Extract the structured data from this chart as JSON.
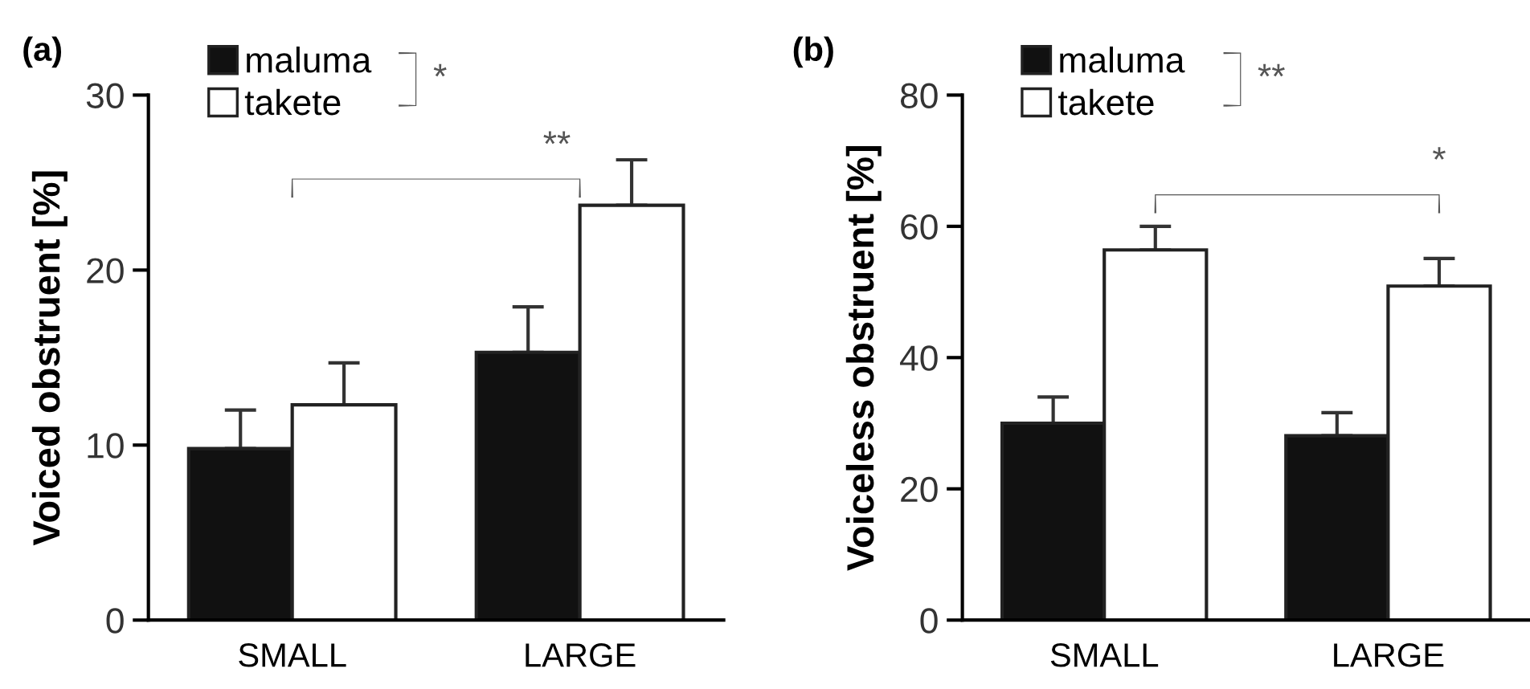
{
  "chart_data": [
    {
      "type": "bar",
      "title": "(a)",
      "ylabel": "Voiced obstruent [%]",
      "categories": [
        "SMALL",
        "LARGE"
      ],
      "series": [
        {
          "name": "maluma",
          "color": "#111111",
          "values": [
            9.8,
            15.3
          ],
          "errors": [
            [
              9.8,
              12.0
            ],
            [
              15.3,
              17.9
            ]
          ]
        },
        {
          "name": "takete",
          "color": "#ffffff",
          "values": [
            12.3,
            23.7
          ],
          "errors": [
            [
              12.3,
              14.7
            ],
            [
              23.7,
              26.3
            ]
          ]
        }
      ],
      "ylim": [
        0,
        30
      ],
      "yticks": [
        0,
        10,
        20,
        30
      ],
      "legend": "top left",
      "grid": false,
      "annotations": [
        "*",
        "**"
      ]
    },
    {
      "type": "bar",
      "title": "(b)",
      "ylabel": "Voiceless obstruent [%]",
      "categories": [
        "SMALL",
        "LARGE"
      ],
      "series": [
        {
          "name": "maluma",
          "color": "#111111",
          "values": [
            30.0,
            28.1
          ],
          "errors": [
            [
              30.0,
              34.0
            ],
            [
              28.1,
              31.6
            ]
          ]
        },
        {
          "name": "takete",
          "color": "#ffffff",
          "values": [
            56.4,
            50.9
          ],
          "errors": [
            [
              56.4,
              60.0
            ],
            [
              50.9,
              55.1
            ]
          ]
        }
      ],
      "ylim": [
        0,
        80
      ],
      "yticks": [
        0,
        20,
        40,
        60,
        80
      ],
      "legend": "top left",
      "grid": false,
      "annotations": [
        "**",
        "*"
      ]
    }
  ]
}
